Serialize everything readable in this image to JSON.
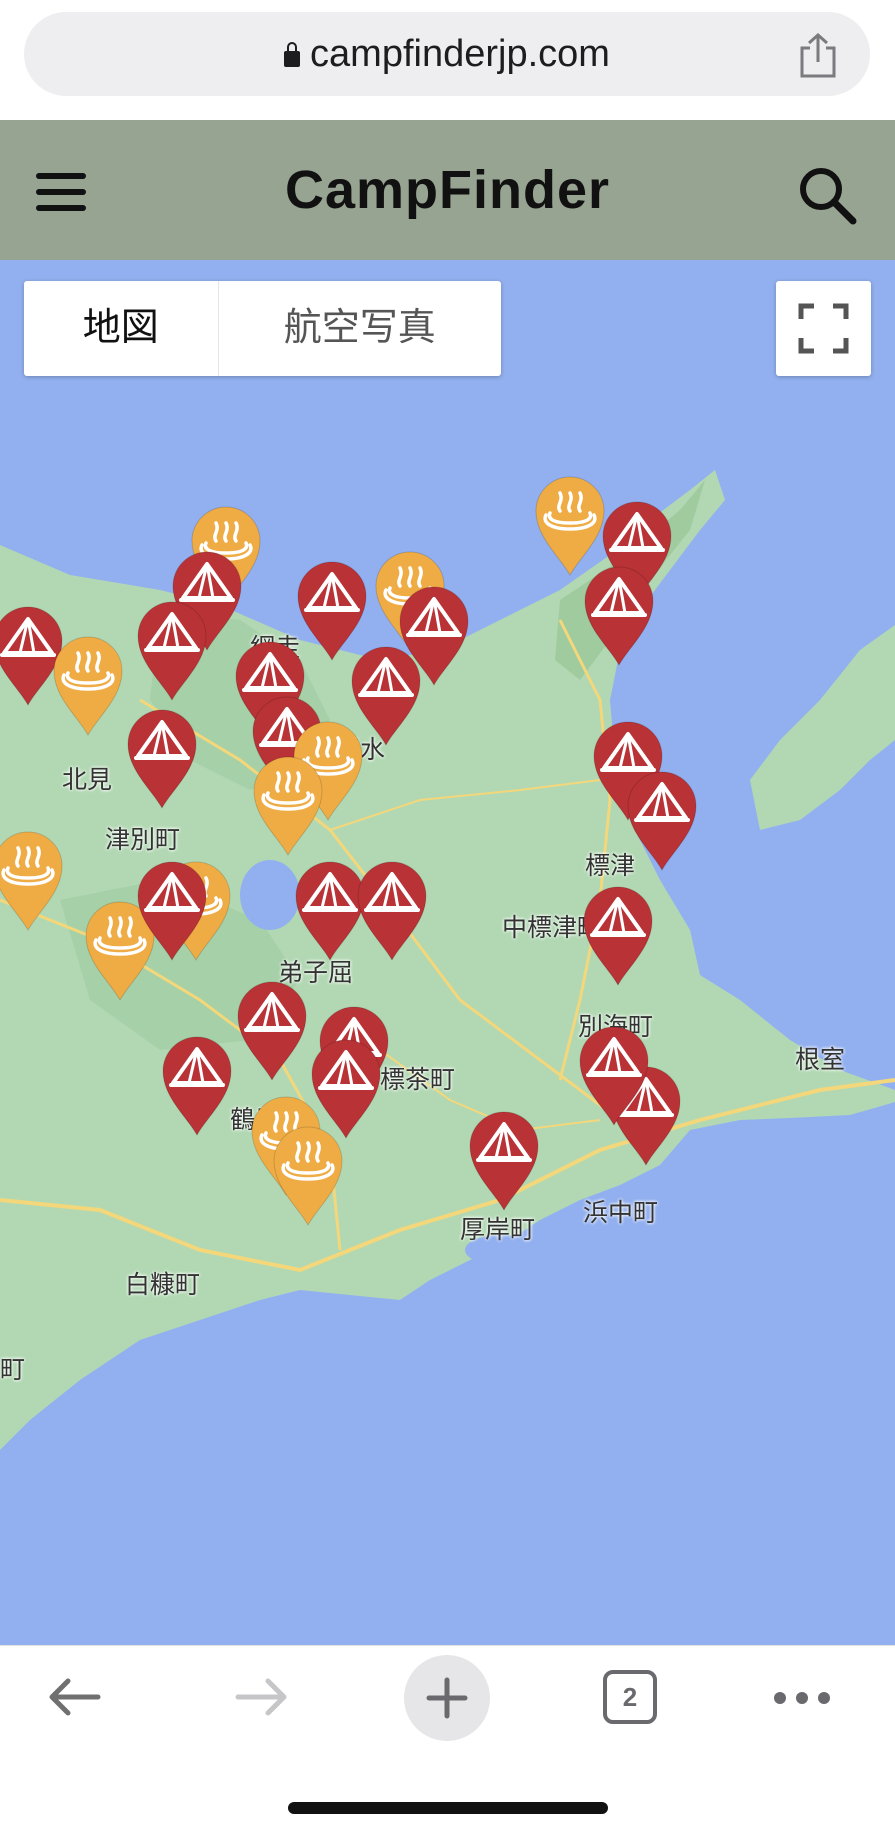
{
  "browser": {
    "url": "campfinderjp.com",
    "tab_count": "2"
  },
  "header": {
    "brand": "CampFinder"
  },
  "map_controls": {
    "map_tab": "地図",
    "aerial_tab": "航空写真"
  },
  "towns": [
    {
      "name": "根室"
    },
    {
      "name": "中標津町"
    },
    {
      "name": "白糠町"
    },
    {
      "name": "弟子屈"
    },
    {
      "name": "鶴居村"
    },
    {
      "name": "別海町"
    },
    {
      "name": "浜中町"
    },
    {
      "name": "厚岸町"
    },
    {
      "name": "標茶町"
    },
    {
      "name": "津別町"
    },
    {
      "name": "北見"
    },
    {
      "name": "清水"
    },
    {
      "name": "標津"
    },
    {
      "name": "網走"
    },
    {
      "name": "町"
    }
  ],
  "pin_types": {
    "camp": {
      "color": "#b83236",
      "icon": "tent-icon"
    },
    "onsen": {
      "color": "#efac45",
      "icon": "hot-spring-icon"
    }
  }
}
